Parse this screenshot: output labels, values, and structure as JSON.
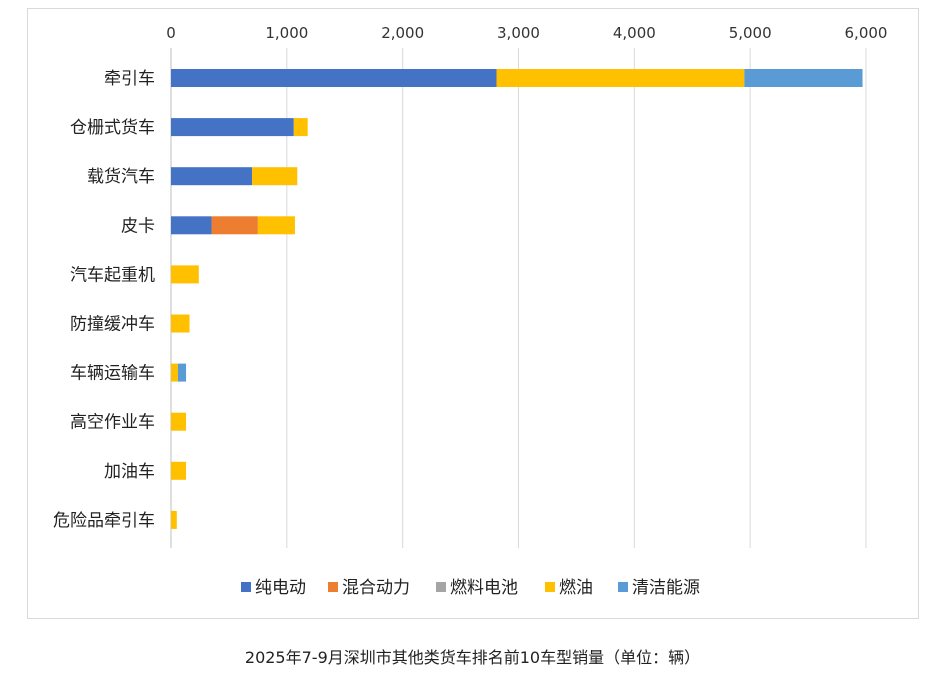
{
  "caption": "2025年7-9月深圳市其他类货车排名前10车型销量（单位：辆）",
  "chart_data": {
    "type": "bar",
    "orientation": "horizontal",
    "stacked": true,
    "title": "",
    "categories": [
      "牵引车",
      "仓栅式货车",
      "载货汽车",
      "皮卡",
      "汽车起重机",
      "防撞缓冲车",
      "车辆运输车",
      "高空作业车",
      "加油车",
      "危险品牵引车"
    ],
    "series": [
      {
        "name": "纯电动",
        "color": "#4472C4",
        "values": [
          2810,
          1060,
          700,
          350,
          0,
          0,
          0,
          0,
          0,
          0
        ]
      },
      {
        "name": "混合动力",
        "color": "#ED7D31",
        "values": [
          0,
          0,
          0,
          400,
          0,
          0,
          0,
          0,
          0,
          0
        ]
      },
      {
        "name": "燃料电池",
        "color": "#A5A5A5",
        "values": [
          0,
          0,
          0,
          0,
          0,
          0,
          0,
          0,
          0,
          0
        ]
      },
      {
        "name": "燃油",
        "color": "#FFC000",
        "values": [
          2140,
          120,
          390,
          320,
          240,
          160,
          60,
          130,
          130,
          50
        ]
      },
      {
        "name": "清洁能源",
        "color": "#5B9BD5",
        "values": [
          1020,
          0,
          0,
          0,
          0,
          0,
          70,
          0,
          0,
          0
        ]
      }
    ],
    "xlim": [
      0,
      6000
    ],
    "xticks": [
      0,
      1000,
      2000,
      3000,
      4000,
      5000,
      6000
    ],
    "xtick_labels": [
      "0",
      "1,000",
      "2,000",
      "3,000",
      "4,000",
      "5,000",
      "6,000"
    ],
    "axis_position": "top",
    "grid": true,
    "legend": "bottom"
  }
}
